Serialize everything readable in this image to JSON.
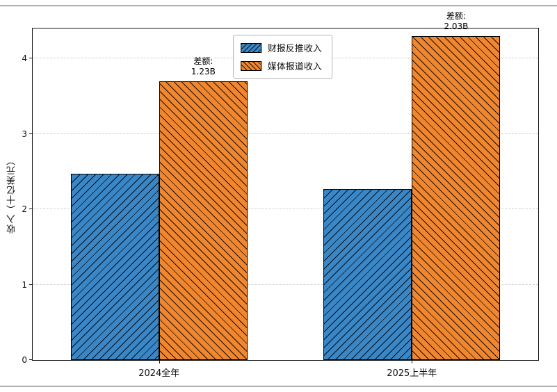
{
  "chart_data": {
    "type": "bar",
    "title": "",
    "categories": [
      "2024全年",
      "2025上半年"
    ],
    "series": [
      {
        "name": "财报反推收入",
        "color": "#3a87c8",
        "hatch": "/",
        "values": [
          2.47,
          2.27
        ]
      },
      {
        "name": "媒体报道收入",
        "color": "#f0862e",
        "hatch": "\\",
        "values": [
          3.7,
          4.3
        ]
      }
    ],
    "annotations": [
      {
        "lines": [
          "差额:",
          "1.23B"
        ],
        "group": 0,
        "series": 1
      },
      {
        "lines": [
          "差额:",
          "2.03B"
        ],
        "group": 1,
        "series": 1
      }
    ],
    "xlabel": "",
    "ylabel": "收入（十亿美元）",
    "yticks": [
      0,
      1,
      2,
      3,
      4
    ],
    "ylim": [
      0,
      4.4
    ],
    "grid": "dashed-horizontal",
    "legend_position": "upper center",
    "group_centers_frac": [
      0.25,
      0.75
    ],
    "bar_width_frac": 0.175
  }
}
